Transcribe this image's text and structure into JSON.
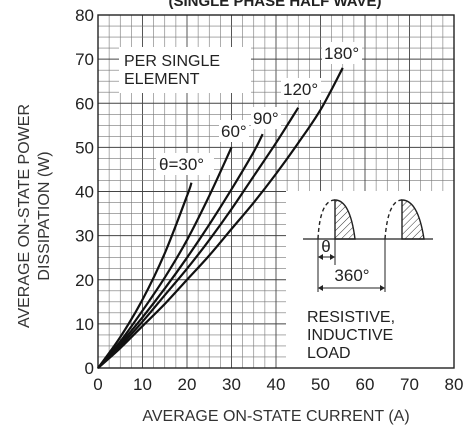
{
  "chart_data": {
    "type": "line",
    "title": "(SINGLE PHASE HALF WAVE)",
    "xlabel": "AVERAGE ON-STATE CURRENT (A)",
    "ylabel": [
      "AVERAGE ON-STATE POWER",
      "DISSIPATION (W)"
    ],
    "xlim": [
      0,
      80
    ],
    "ylim": [
      0,
      80
    ],
    "xticks": [
      "0",
      "10",
      "20",
      "30",
      "40",
      "50",
      "60",
      "70",
      "80"
    ],
    "yticks": [
      "0",
      "10",
      "20",
      "30",
      "40",
      "50",
      "60",
      "70",
      "80"
    ],
    "grid": true,
    "series": [
      {
        "name": "θ=30°",
        "x": [
          0,
          5,
          10,
          15,
          20,
          21
        ],
        "y": [
          0,
          7,
          15.5,
          26,
          39,
          42
        ]
      },
      {
        "name": "60°",
        "x": [
          0,
          5,
          10,
          15,
          20,
          25,
          30
        ],
        "y": [
          0,
          6,
          13,
          20.5,
          29,
          39,
          50
        ]
      },
      {
        "name": "90°",
        "x": [
          0,
          5,
          10,
          15,
          20,
          25,
          30,
          35,
          37
        ],
        "y": [
          0,
          5.5,
          11.5,
          18,
          25,
          32.5,
          40.5,
          49,
          53
        ]
      },
      {
        "name": "120°",
        "x": [
          0,
          5,
          10,
          15,
          20,
          25,
          30,
          35,
          40,
          45
        ],
        "y": [
          0,
          5,
          10.5,
          16.5,
          22.5,
          29,
          36,
          43.5,
          51,
          59
        ]
      },
      {
        "name": "180°",
        "x": [
          0,
          5,
          10,
          15,
          20,
          25,
          30,
          35,
          40,
          45,
          50,
          55
        ],
        "y": [
          0,
          4.5,
          9.5,
          14.5,
          20,
          25.5,
          31.5,
          37.5,
          44,
          51,
          58.5,
          68
        ]
      }
    ],
    "annotations": {
      "element_note": [
        "PER SINGLE",
        "ELEMENT"
      ],
      "load_note": [
        "RESISTIVE,",
        "INDUCTIVE",
        "LOAD"
      ],
      "theta_symbol": "θ",
      "period_label": "360°"
    }
  }
}
